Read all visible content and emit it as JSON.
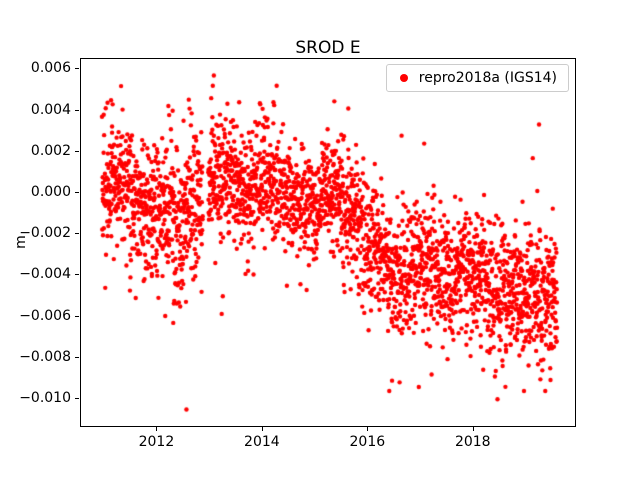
{
  "figure": {
    "background": "#ffffff"
  },
  "chart_data": {
    "type": "scatter",
    "title": "SROD E",
    "xlabel": "",
    "ylabel": "m",
    "legend": {
      "label": "repro2018a (IGS14)",
      "marker": "red-dot",
      "location": "upper right"
    },
    "marker_color": "#ff0000",
    "marker_radius": 2.2,
    "grid": false,
    "xlim": [
      2010.55,
      2019.92
    ],
    "ylim": [
      -0.0113,
      0.0065
    ],
    "xticks": [
      {
        "value": 2012,
        "label": "2012"
      },
      {
        "value": 2014,
        "label": "2014"
      },
      {
        "value": 2016,
        "label": "2016"
      },
      {
        "value": 2018,
        "label": "2018"
      }
    ],
    "yticks": [
      {
        "value": 0.006,
        "label": "0.006"
      },
      {
        "value": 0.004,
        "label": "0.004"
      },
      {
        "value": 0.002,
        "label": "0.002"
      },
      {
        "value": 0.0,
        "label": "0.000"
      },
      {
        "value": -0.002,
        "label": "−0.002"
      },
      {
        "value": -0.004,
        "label": "−0.004"
      },
      {
        "value": -0.006,
        "label": "−0.006"
      },
      {
        "value": -0.008,
        "label": "−0.008"
      },
      {
        "value": -0.01,
        "label": "−0.010"
      }
    ],
    "x_range": [
      2010.95,
      2019.58
    ],
    "n_points": 2800,
    "seed": 7,
    "gaps": [
      [
        2012.86,
        2012.96
      ]
    ],
    "trend_mean": [
      [
        2010.95,
        0.0002
      ],
      [
        2011.3,
        0.0004
      ],
      [
        2011.7,
        -0.0006
      ],
      [
        2012.1,
        -0.0006
      ],
      [
        2012.45,
        -0.0012
      ],
      [
        2012.75,
        -0.0004
      ],
      [
        2013.05,
        0.001
      ],
      [
        2013.4,
        0.0008
      ],
      [
        2013.75,
        0.0003
      ],
      [
        2014.1,
        0.0009
      ],
      [
        2014.5,
        -0.0002
      ],
      [
        2014.9,
        -0.0008
      ],
      [
        2015.25,
        0.0004
      ],
      [
        2015.6,
        -0.0008
      ],
      [
        2016.0,
        -0.0025
      ],
      [
        2016.5,
        -0.0038
      ],
      [
        2017.0,
        -0.0034
      ],
      [
        2017.5,
        -0.004
      ],
      [
        2018.0,
        -0.0038
      ],
      [
        2018.5,
        -0.0047
      ],
      [
        2019.0,
        -0.0046
      ],
      [
        2019.58,
        -0.0053
      ]
    ],
    "scatter_std": [
      [
        2010.95,
        0.0015
      ],
      [
        2012.0,
        0.0017
      ],
      [
        2012.6,
        0.0019
      ],
      [
        2013.2,
        0.0015
      ],
      [
        2014.0,
        0.0014
      ],
      [
        2015.0,
        0.0013
      ],
      [
        2015.6,
        0.0014
      ],
      [
        2016.2,
        0.0017
      ],
      [
        2017.0,
        0.0016
      ],
      [
        2018.0,
        0.0016
      ],
      [
        2019.0,
        0.0016
      ],
      [
        2019.58,
        0.0017
      ]
    ],
    "clip": [
      -0.0096,
      0.0052
    ],
    "outliers": [
      [
        2011.12,
        0.0045
      ],
      [
        2011.15,
        0.0043
      ],
      [
        2012.3,
        -0.0063
      ],
      [
        2012.55,
        -0.0105
      ],
      [
        2013.02,
        0.0046
      ],
      [
        2013.07,
        0.0057
      ],
      [
        2013.55,
        0.0044
      ],
      [
        2013.95,
        0.0043
      ],
      [
        2014.2,
        0.0044
      ],
      [
        2015.62,
        0.0041
      ],
      [
        2016.45,
        -0.0091
      ],
      [
        2017.2,
        -0.0088
      ],
      [
        2018.45,
        -0.01
      ],
      [
        2018.6,
        -0.0094
      ],
      [
        2019.3,
        -0.0086
      ],
      [
        2019.45,
        -0.0085
      ]
    ]
  }
}
